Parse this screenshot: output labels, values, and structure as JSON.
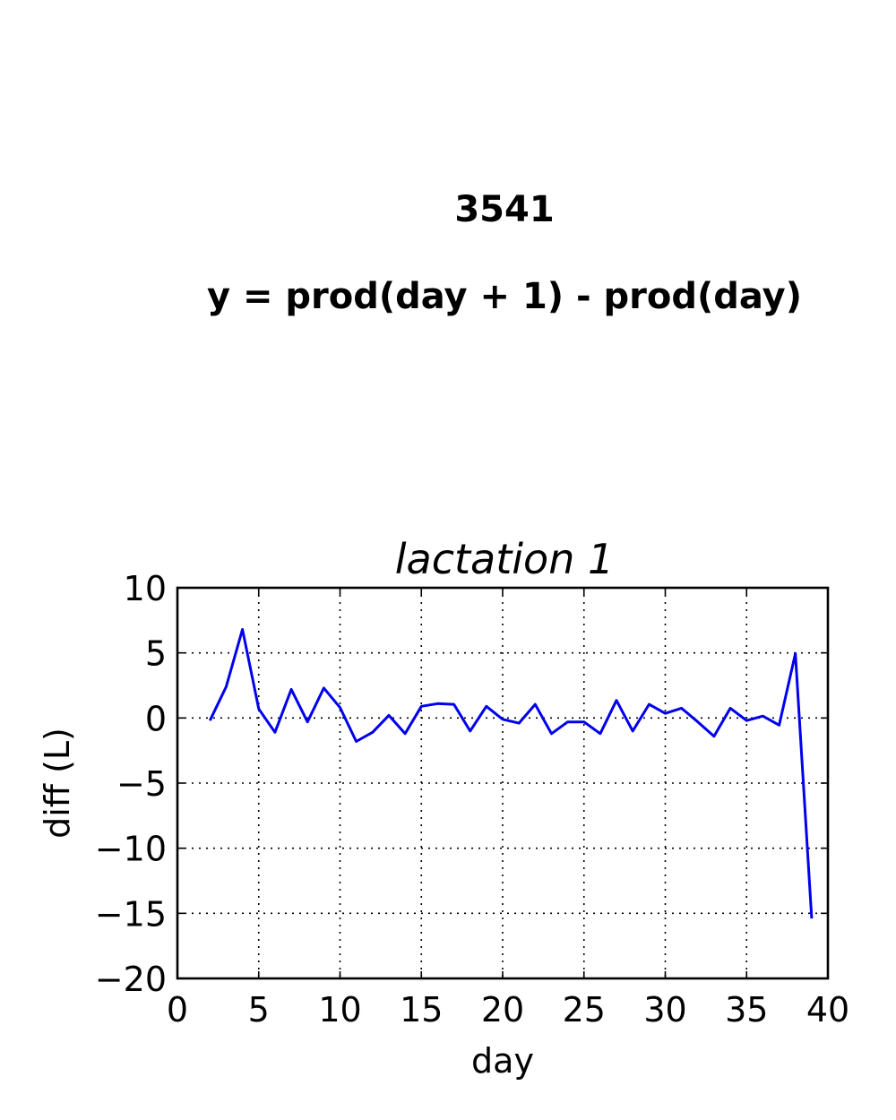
{
  "figure": {
    "title": "3541",
    "subtitle": "y = prod(day + 1) - prod(day)"
  },
  "chart_data": {
    "type": "line",
    "title": "lactation 1",
    "xlabel": "day",
    "ylabel": "diff (L)",
    "xlim": [
      0,
      40
    ],
    "ylim": [
      -20,
      10
    ],
    "xticks": [
      0,
      5,
      10,
      15,
      20,
      25,
      30,
      35,
      40
    ],
    "xtick_labels": [
      "0",
      "5",
      "10",
      "15",
      "20",
      "25",
      "30",
      "35",
      "40"
    ],
    "yticks": [
      10,
      5,
      0,
      -5,
      -10,
      -15,
      -20
    ],
    "ytick_labels": [
      "10",
      "5",
      "0",
      "−5",
      "−10",
      "−15",
      "−20"
    ],
    "grid": true,
    "legend": "none",
    "series": [
      {
        "color": "#0000ee",
        "x": [
          2,
          3,
          4,
          5,
          6,
          7,
          8,
          9,
          10,
          11,
          12,
          13,
          14,
          15,
          16,
          17,
          18,
          19,
          20,
          21,
          22,
          23,
          24,
          25,
          26,
          27,
          28,
          29,
          30,
          31,
          32,
          33,
          34,
          35,
          36,
          37,
          38,
          39
        ],
        "y": [
          -0.2,
          2.4,
          6.8,
          0.7,
          -1.1,
          2.2,
          -0.3,
          2.3,
          0.8,
          -1.8,
          -1.1,
          0.2,
          -1.2,
          0.9,
          1.1,
          1.05,
          -1.0,
          0.9,
          -0.1,
          -0.4,
          1.05,
          -1.2,
          -0.3,
          -0.3,
          -1.2,
          1.35,
          -1.0,
          1.05,
          0.35,
          0.75,
          -0.3,
          -1.4,
          0.75,
          -0.2,
          0.15,
          -0.55,
          4.95,
          -15.4
        ]
      }
    ]
  }
}
